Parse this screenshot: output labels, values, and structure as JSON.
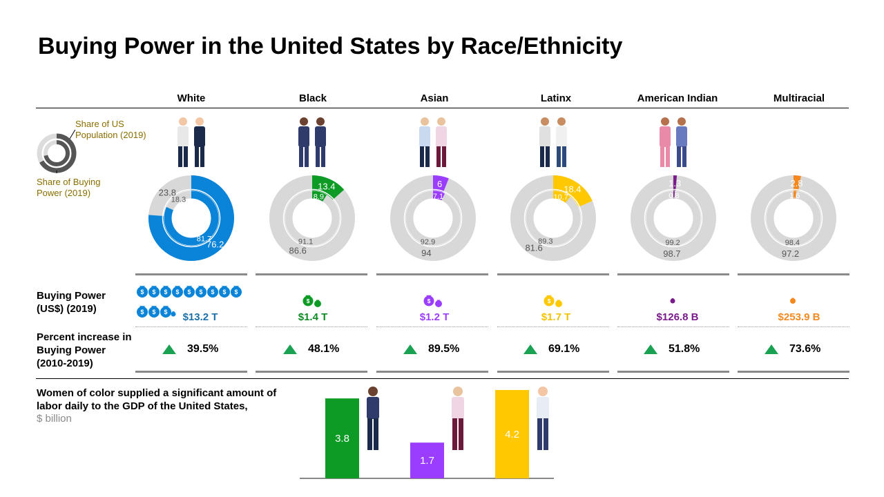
{
  "title": "Buying Power in the United States by Race/Ethnicity",
  "legend": {
    "population_label": "Share of US Population (2019)",
    "buying_power_label": "Share of Buying Power (2019)"
  },
  "row_labels": {
    "buying_power": "Buying Power (US$) (2019)",
    "percent_increase": "Percent increase in Buying Power (2010-2019)"
  },
  "groups": [
    {
      "name": "White",
      "color": "#0a84d8",
      "population_share": 76.2,
      "population_rest": 23.8,
      "buying_power_share": 81.7,
      "buying_power_rest": 18.3,
      "buying_power_value": "$13.2 T",
      "value_color": "#1d6fa8",
      "percent_increase": "39.5%",
      "dollar_icons": 13
    },
    {
      "name": "Black",
      "color": "#0d9b26",
      "population_share": 13.4,
      "population_rest": 86.6,
      "buying_power_share": 8.9,
      "buying_power_rest": 91.1,
      "buying_power_value": "$1.4 T",
      "value_color": "#0d8a22",
      "percent_increase": "48.1%",
      "dollar_icons": 2
    },
    {
      "name": "Asian",
      "color": "#9b3dff",
      "population_share": 6.0,
      "population_rest": 94.0,
      "buying_power_share": 7.1,
      "buying_power_rest": 92.9,
      "buying_power_value": "$1.2 T",
      "value_color": "#9b3dff",
      "percent_increase": "89.5%",
      "dollar_icons": 2
    },
    {
      "name": "Latinx",
      "color": "#ffc800",
      "population_share": 18.4,
      "population_rest": 81.6,
      "buying_power_share": 10.7,
      "buying_power_rest": 89.3,
      "buying_power_value": "$1.7 T",
      "value_color": "#f2c200",
      "percent_increase": "69.1%",
      "dollar_icons": 2
    },
    {
      "name": "American Indian",
      "color": "#7a1a8c",
      "population_share": 1.3,
      "population_rest": 98.7,
      "buying_power_share": 0.8,
      "buying_power_rest": 99.2,
      "buying_power_value": "$126.8 B",
      "value_color": "#7a1a8c",
      "percent_increase": "51.8%",
      "dollar_icons": 1
    },
    {
      "name": "Multiracial",
      "color": "#f5891f",
      "population_share": 2.8,
      "population_rest": 97.2,
      "buying_power_share": 1.6,
      "buying_power_rest": 98.4,
      "buying_power_value": "$253.9 B",
      "value_color": "#f5891f",
      "percent_increase": "73.6%",
      "dollar_icons": 1
    }
  ],
  "women_of_color": {
    "title": "Women of color supplied a significant amount of labor daily to the GDP of the United States,",
    "unit": "$ billion"
  },
  "chart_data": [
    {
      "type": "pie",
      "variant": "double-donut",
      "title": "Buying Power in the United States by Race/Ethnicity",
      "categories": [
        "White",
        "Black",
        "Asian",
        "Latinx",
        "American Indian",
        "Multiracial"
      ],
      "series": [
        {
          "name": "Share of US Population (2019)",
          "values": [
            76.2,
            13.4,
            6.0,
            18.4,
            1.3,
            2.8
          ]
        },
        {
          "name": "Share of Buying Power (2019)",
          "values": [
            81.7,
            8.9,
            7.1,
            10.7,
            0.8,
            1.6
          ]
        }
      ]
    },
    {
      "type": "bar",
      "title": "Women of color supplied a significant amount of labor daily to the GDP of the United States,",
      "ylabel": "$ billion",
      "values": [
        3.8,
        1.7,
        4.2
      ],
      "colors": [
        "#0d9b26",
        "#9b3dff",
        "#ffc800"
      ],
      "ylim": [
        0,
        4.3
      ]
    }
  ]
}
